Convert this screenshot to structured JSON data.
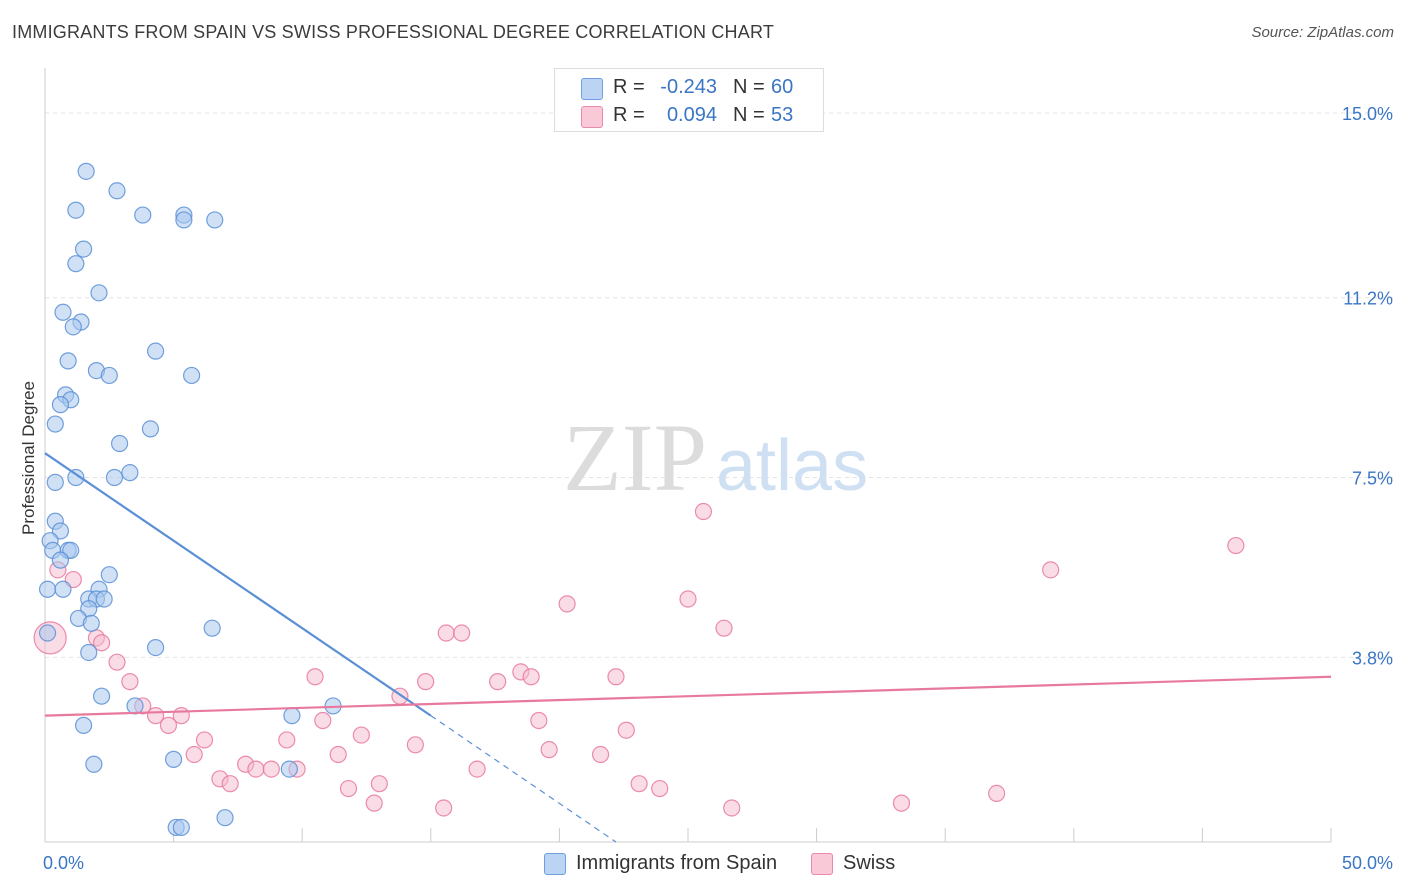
{
  "header": {
    "title": "IMMIGRANTS FROM SPAIN VS SWISS PROFESSIONAL DEGREE CORRELATION CHART",
    "source": "Source: ZipAtlas.com"
  },
  "watermark": {
    "zip": "ZIP",
    "atlas": "atlas"
  },
  "legend": {
    "r_label": "R =",
    "n_label": "N =",
    "series": [
      {
        "r": "-0.243",
        "n": "60"
      },
      {
        "r": "0.094",
        "n": "53"
      }
    ]
  },
  "chart_data": {
    "type": "scatter",
    "title": "IMMIGRANTS FROM SPAIN VS SWISS PROFESSIONAL DEGREE CORRELATION CHART",
    "xlabel": "",
    "ylabel": "Professional Degree",
    "xlim": [
      0,
      50
    ],
    "ylim": [
      0,
      15.7
    ],
    "x_tick_labels": [
      {
        "value": 0,
        "label": "0.0%"
      },
      {
        "value": 50,
        "label": "50.0%"
      }
    ],
    "y_tick_labels": [
      {
        "value": 3.8,
        "label": "3.8%"
      },
      {
        "value": 7.5,
        "label": "7.5%"
      },
      {
        "value": 11.2,
        "label": "11.2%"
      },
      {
        "value": 15.0,
        "label": "15.0%"
      }
    ],
    "x_minor_ticks": [
      5,
      10,
      15,
      20,
      25,
      30,
      35,
      40,
      45,
      50
    ],
    "grid": true,
    "legend_position": "top-center",
    "series": [
      {
        "name": "Immigrants from Spain",
        "color": "#5b8fd6",
        "fill": "#a9c8ef",
        "r": -0.243,
        "n": 60,
        "trend": {
          "x0": 0,
          "y0": 8.0,
          "x1": 15,
          "y1": 2.6,
          "dash_to_x": 22.2,
          "dash_to_y": 0
        },
        "points": [
          [
            1.6,
            13.8
          ],
          [
            2.8,
            13.4
          ],
          [
            1.2,
            13.0
          ],
          [
            3.8,
            12.9
          ],
          [
            5.4,
            12.9
          ],
          [
            5.4,
            12.8
          ],
          [
            6.6,
            12.8
          ],
          [
            1.5,
            12.2
          ],
          [
            1.2,
            11.9
          ],
          [
            2.1,
            11.3
          ],
          [
            0.7,
            10.9
          ],
          [
            1.4,
            10.7
          ],
          [
            1.1,
            10.6
          ],
          [
            4.3,
            10.1
          ],
          [
            0.9,
            9.9
          ],
          [
            2.0,
            9.7
          ],
          [
            2.5,
            9.6
          ],
          [
            5.7,
            9.6
          ],
          [
            0.8,
            9.2
          ],
          [
            1.0,
            9.1
          ],
          [
            0.6,
            9.0
          ],
          [
            0.4,
            8.6
          ],
          [
            4.1,
            8.5
          ],
          [
            2.9,
            8.2
          ],
          [
            3.3,
            7.6
          ],
          [
            1.2,
            7.5
          ],
          [
            2.7,
            7.5
          ],
          [
            0.4,
            7.4
          ],
          [
            0.4,
            6.6
          ],
          [
            0.6,
            6.4
          ],
          [
            0.2,
            6.2
          ],
          [
            0.3,
            6.0
          ],
          [
            0.9,
            6.0
          ],
          [
            1.0,
            6.0
          ],
          [
            0.6,
            5.8
          ],
          [
            2.5,
            5.5
          ],
          [
            0.1,
            5.2
          ],
          [
            0.7,
            5.2
          ],
          [
            2.1,
            5.2
          ],
          [
            1.7,
            5.0
          ],
          [
            2.0,
            5.0
          ],
          [
            2.3,
            5.0
          ],
          [
            1.7,
            4.8
          ],
          [
            1.3,
            4.6
          ],
          [
            1.8,
            4.5
          ],
          [
            6.5,
            4.4
          ],
          [
            0.1,
            4.3
          ],
          [
            4.3,
            4.0
          ],
          [
            1.7,
            3.9
          ],
          [
            2.2,
            3.0
          ],
          [
            3.5,
            2.8
          ],
          [
            9.6,
            2.6
          ],
          [
            11.2,
            2.8
          ],
          [
            1.5,
            2.4
          ],
          [
            5.0,
            1.7
          ],
          [
            1.9,
            1.6
          ],
          [
            9.5,
            1.5
          ],
          [
            5.1,
            0.3
          ],
          [
            5.3,
            0.3
          ],
          [
            7.0,
            0.5
          ]
        ]
      },
      {
        "name": "Swiss",
        "color": "#e8799e",
        "fill": "#f6b9cd",
        "r": 0.094,
        "n": 53,
        "trend": {
          "x0": 0,
          "y0": 2.6,
          "x1": 50,
          "y1": 3.4
        },
        "points": [
          [
            0.2,
            4.2
          ],
          [
            0.5,
            5.6
          ],
          [
            1.1,
            5.4
          ],
          [
            2.0,
            4.2
          ],
          [
            2.2,
            4.1
          ],
          [
            2.8,
            3.7
          ],
          [
            3.3,
            3.3
          ],
          [
            3.8,
            2.8
          ],
          [
            4.3,
            2.6
          ],
          [
            4.8,
            2.4
          ],
          [
            5.3,
            2.6
          ],
          [
            5.8,
            1.8
          ],
          [
            6.2,
            2.1
          ],
          [
            6.8,
            1.3
          ],
          [
            7.2,
            1.2
          ],
          [
            7.8,
            1.6
          ],
          [
            8.2,
            1.5
          ],
          [
            8.8,
            1.5
          ],
          [
            9.4,
            2.1
          ],
          [
            9.8,
            1.5
          ],
          [
            10.5,
            3.4
          ],
          [
            10.8,
            2.5
          ],
          [
            11.4,
            1.8
          ],
          [
            11.8,
            1.1
          ],
          [
            12.3,
            2.2
          ],
          [
            12.8,
            0.8
          ],
          [
            13.0,
            1.2
          ],
          [
            13.8,
            3.0
          ],
          [
            14.4,
            2.0
          ],
          [
            14.8,
            3.3
          ],
          [
            15.5,
            0.7
          ],
          [
            15.6,
            4.3
          ],
          [
            16.2,
            4.3
          ],
          [
            16.8,
            1.5
          ],
          [
            17.6,
            3.3
          ],
          [
            18.5,
            3.5
          ],
          [
            18.9,
            3.4
          ],
          [
            19.2,
            2.5
          ],
          [
            19.6,
            1.9
          ],
          [
            20.3,
            4.9
          ],
          [
            21.6,
            1.8
          ],
          [
            22.2,
            3.4
          ],
          [
            22.6,
            2.3
          ],
          [
            23.1,
            1.2
          ],
          [
            23.9,
            1.1
          ],
          [
            25.0,
            5.0
          ],
          [
            25.6,
            6.8
          ],
          [
            26.4,
            4.4
          ],
          [
            26.7,
            0.7
          ],
          [
            33.3,
            0.8
          ],
          [
            37.0,
            1.0
          ],
          [
            39.1,
            5.6
          ],
          [
            46.3,
            6.1
          ]
        ]
      }
    ]
  }
}
